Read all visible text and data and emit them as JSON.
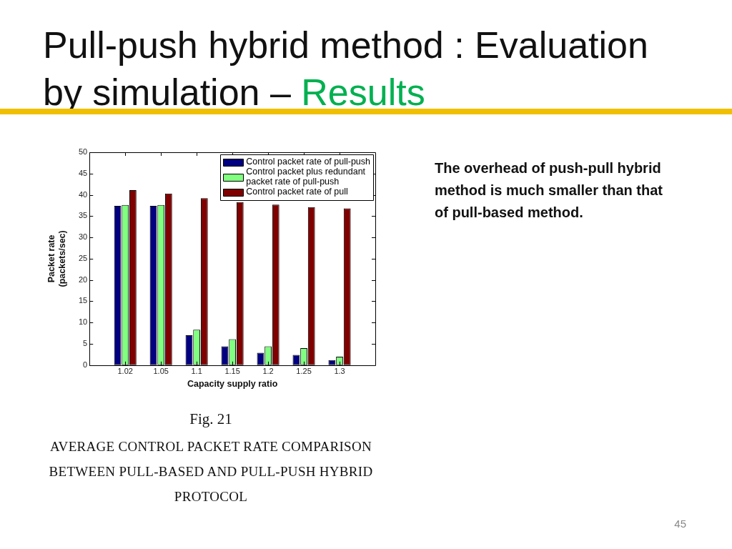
{
  "chart_data": {
    "type": "bar",
    "title": "Pull-push hybrid method : Evaluation by simulation – Results",
    "xlabel": "Capacity supply ratio",
    "ylabel": "Packet rate\n(packets/sec)",
    "categories": [
      "1.02",
      "1.05",
      "1.1",
      "1.15",
      "1.2",
      "1.25",
      "1.3"
    ],
    "series": [
      {
        "name": "Control packet rate of pull-push",
        "color": "#000080",
        "values": [
          37.4,
          37.4,
          7.0,
          4.4,
          2.9,
          2.4,
          1.2
        ]
      },
      {
        "name": "Control packet plus redundant packet rate of pull-push",
        "color": "#80ff80",
        "values": [
          37.6,
          37.6,
          8.3,
          6.1,
          4.4,
          4.0,
          2.0
        ]
      },
      {
        "name": "Control packet rate of pull",
        "color": "#800000",
        "values": [
          41.1,
          40.3,
          39.2,
          38.3,
          37.7,
          37.1,
          36.8
        ]
      }
    ],
    "ylim": [
      0,
      50
    ],
    "yticks": [
      0,
      5,
      10,
      15,
      20,
      25,
      30,
      35,
      40,
      45,
      50
    ],
    "grid": false,
    "legend": "top right",
    "annotations": [
      "Fig. 21",
      "AVERAGE CONTROL PACKET RATE COMPARISON BETWEEN PULL-BASED AND PULL-PUSH HYBRID PROTOCOL",
      "The overhead of push-pull hybrid method is much smaller than that of pull-based method.",
      "45"
    ]
  }
}
